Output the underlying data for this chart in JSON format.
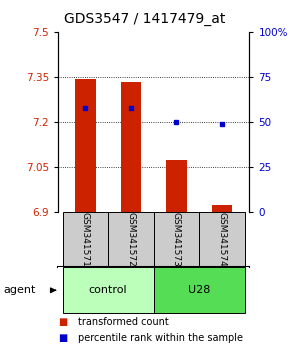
{
  "title": "GDS3547 / 1417479_at",
  "samples": [
    "GSM341571",
    "GSM341572",
    "GSM341573",
    "GSM341574"
  ],
  "bar_values": [
    7.342,
    7.332,
    7.073,
    6.923
  ],
  "bar_base": 6.9,
  "percentile_values": [
    58,
    58,
    50,
    49
  ],
  "ylim_left": [
    6.9,
    7.5
  ],
  "ylim_right": [
    0,
    100
  ],
  "yticks_left": [
    6.9,
    7.05,
    7.2,
    7.35,
    7.5
  ],
  "yticks_right": [
    0,
    25,
    50,
    75,
    100
  ],
  "ytick_right_labels": [
    "0",
    "25",
    "50",
    "75",
    "100%"
  ],
  "bar_color": "#cc2200",
  "dot_color": "#0000cc",
  "groups": [
    {
      "label": "control",
      "indices": [
        0,
        1
      ],
      "color": "#bbffbb"
    },
    {
      "label": "U28",
      "indices": [
        2,
        3
      ],
      "color": "#55dd55"
    }
  ],
  "agent_label": "agent",
  "legend": [
    {
      "color": "#cc2200",
      "label": "transformed count"
    },
    {
      "color": "#0000cc",
      "label": "percentile rank within the sample"
    }
  ],
  "sample_box_color": "#cccccc",
  "title_fontsize": 10,
  "tick_fontsize": 7.5,
  "sample_fontsize": 6.5,
  "group_fontsize": 8,
  "legend_fontsize": 7
}
